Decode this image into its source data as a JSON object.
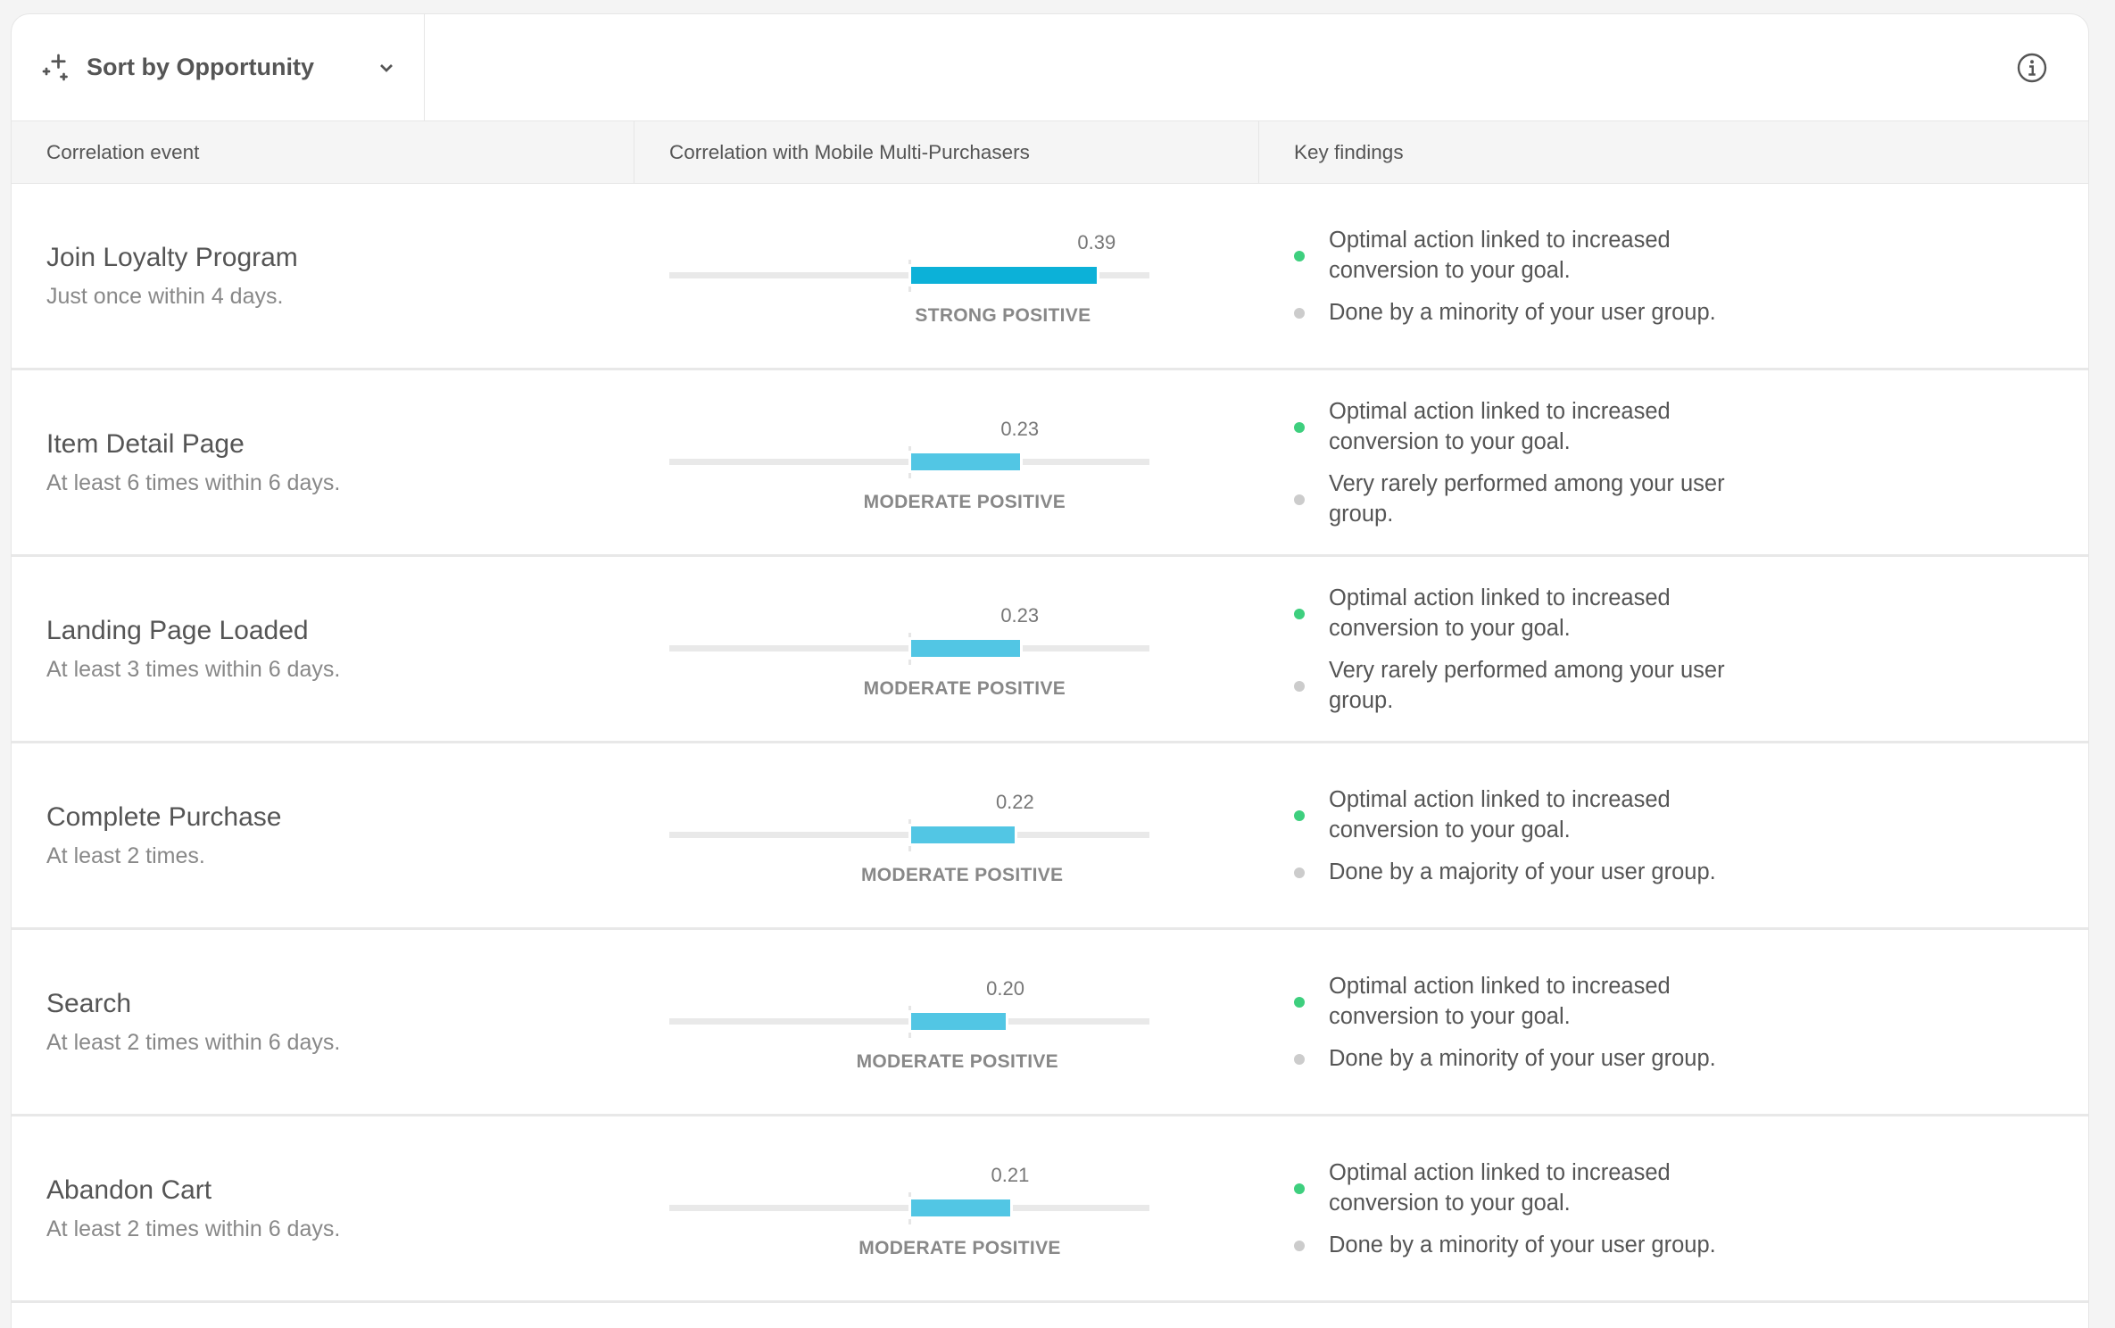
{
  "toolbar": {
    "sort_label": "Sort by Opportunity",
    "sort_icon": "sparkle-icon",
    "info_icon": "info-icon"
  },
  "columns": [
    "Correlation event",
    "Correlation with Mobile Multi-Purchasers",
    "Key findings"
  ],
  "colors": {
    "strong": "#0cb1d8",
    "moderate": "#52c6e4",
    "positive_dot": "#3ecf7e",
    "neutral_dot": "#cccccc"
  },
  "chart_data": {
    "type": "bar",
    "xlim": [
      -0.5,
      0.5
    ]
  },
  "rows": [
    {
      "title": "Join Loyalty Program",
      "subtitle": "Just once within 4 days.",
      "value": 0.39,
      "value_label": "0.39",
      "strength": "STRONG POSITIVE",
      "level": "strong",
      "findings": [
        {
          "type": "positive",
          "text": "Optimal action linked to increased conversion to your goal."
        },
        {
          "type": "neutral",
          "text": "Done by a minority of your user group."
        }
      ]
    },
    {
      "title": "Item Detail Page",
      "subtitle": "At least 6 times within 6 days.",
      "value": 0.23,
      "value_label": "0.23",
      "strength": "MODERATE POSITIVE",
      "level": "moderate",
      "findings": [
        {
          "type": "positive",
          "text": "Optimal action linked to increased conversion to your goal."
        },
        {
          "type": "neutral",
          "text": "Very rarely performed among your user group."
        }
      ]
    },
    {
      "title": "Landing Page Loaded",
      "subtitle": "At least 3 times within 6 days.",
      "value": 0.23,
      "value_label": "0.23",
      "strength": "MODERATE POSITIVE",
      "level": "moderate",
      "findings": [
        {
          "type": "positive",
          "text": "Optimal action linked to increased conversion to your goal."
        },
        {
          "type": "neutral",
          "text": "Very rarely performed among your user group."
        }
      ]
    },
    {
      "title": "Complete Purchase",
      "subtitle": "At least 2 times.",
      "value": 0.22,
      "value_label": "0.22",
      "strength": "MODERATE POSITIVE",
      "level": "moderate",
      "findings": [
        {
          "type": "positive",
          "text": "Optimal action linked to increased conversion to your goal."
        },
        {
          "type": "neutral",
          "text": "Done by a majority of your user group."
        }
      ]
    },
    {
      "title": "Search",
      "subtitle": "At least 2 times within 6 days.",
      "value": 0.2,
      "value_label": "0.20",
      "strength": "MODERATE POSITIVE",
      "level": "moderate",
      "findings": [
        {
          "type": "positive",
          "text": "Optimal action linked to increased conversion to your goal."
        },
        {
          "type": "neutral",
          "text": "Done by a minority of your user group."
        }
      ]
    },
    {
      "title": "Abandon Cart",
      "subtitle": "At least 2 times within 6 days.",
      "value": 0.21,
      "value_label": "0.21",
      "strength": "MODERATE POSITIVE",
      "level": "moderate",
      "findings": [
        {
          "type": "positive",
          "text": "Optimal action linked to increased conversion to your goal."
        },
        {
          "type": "neutral",
          "text": "Done by a minority of your user group."
        }
      ]
    }
  ]
}
